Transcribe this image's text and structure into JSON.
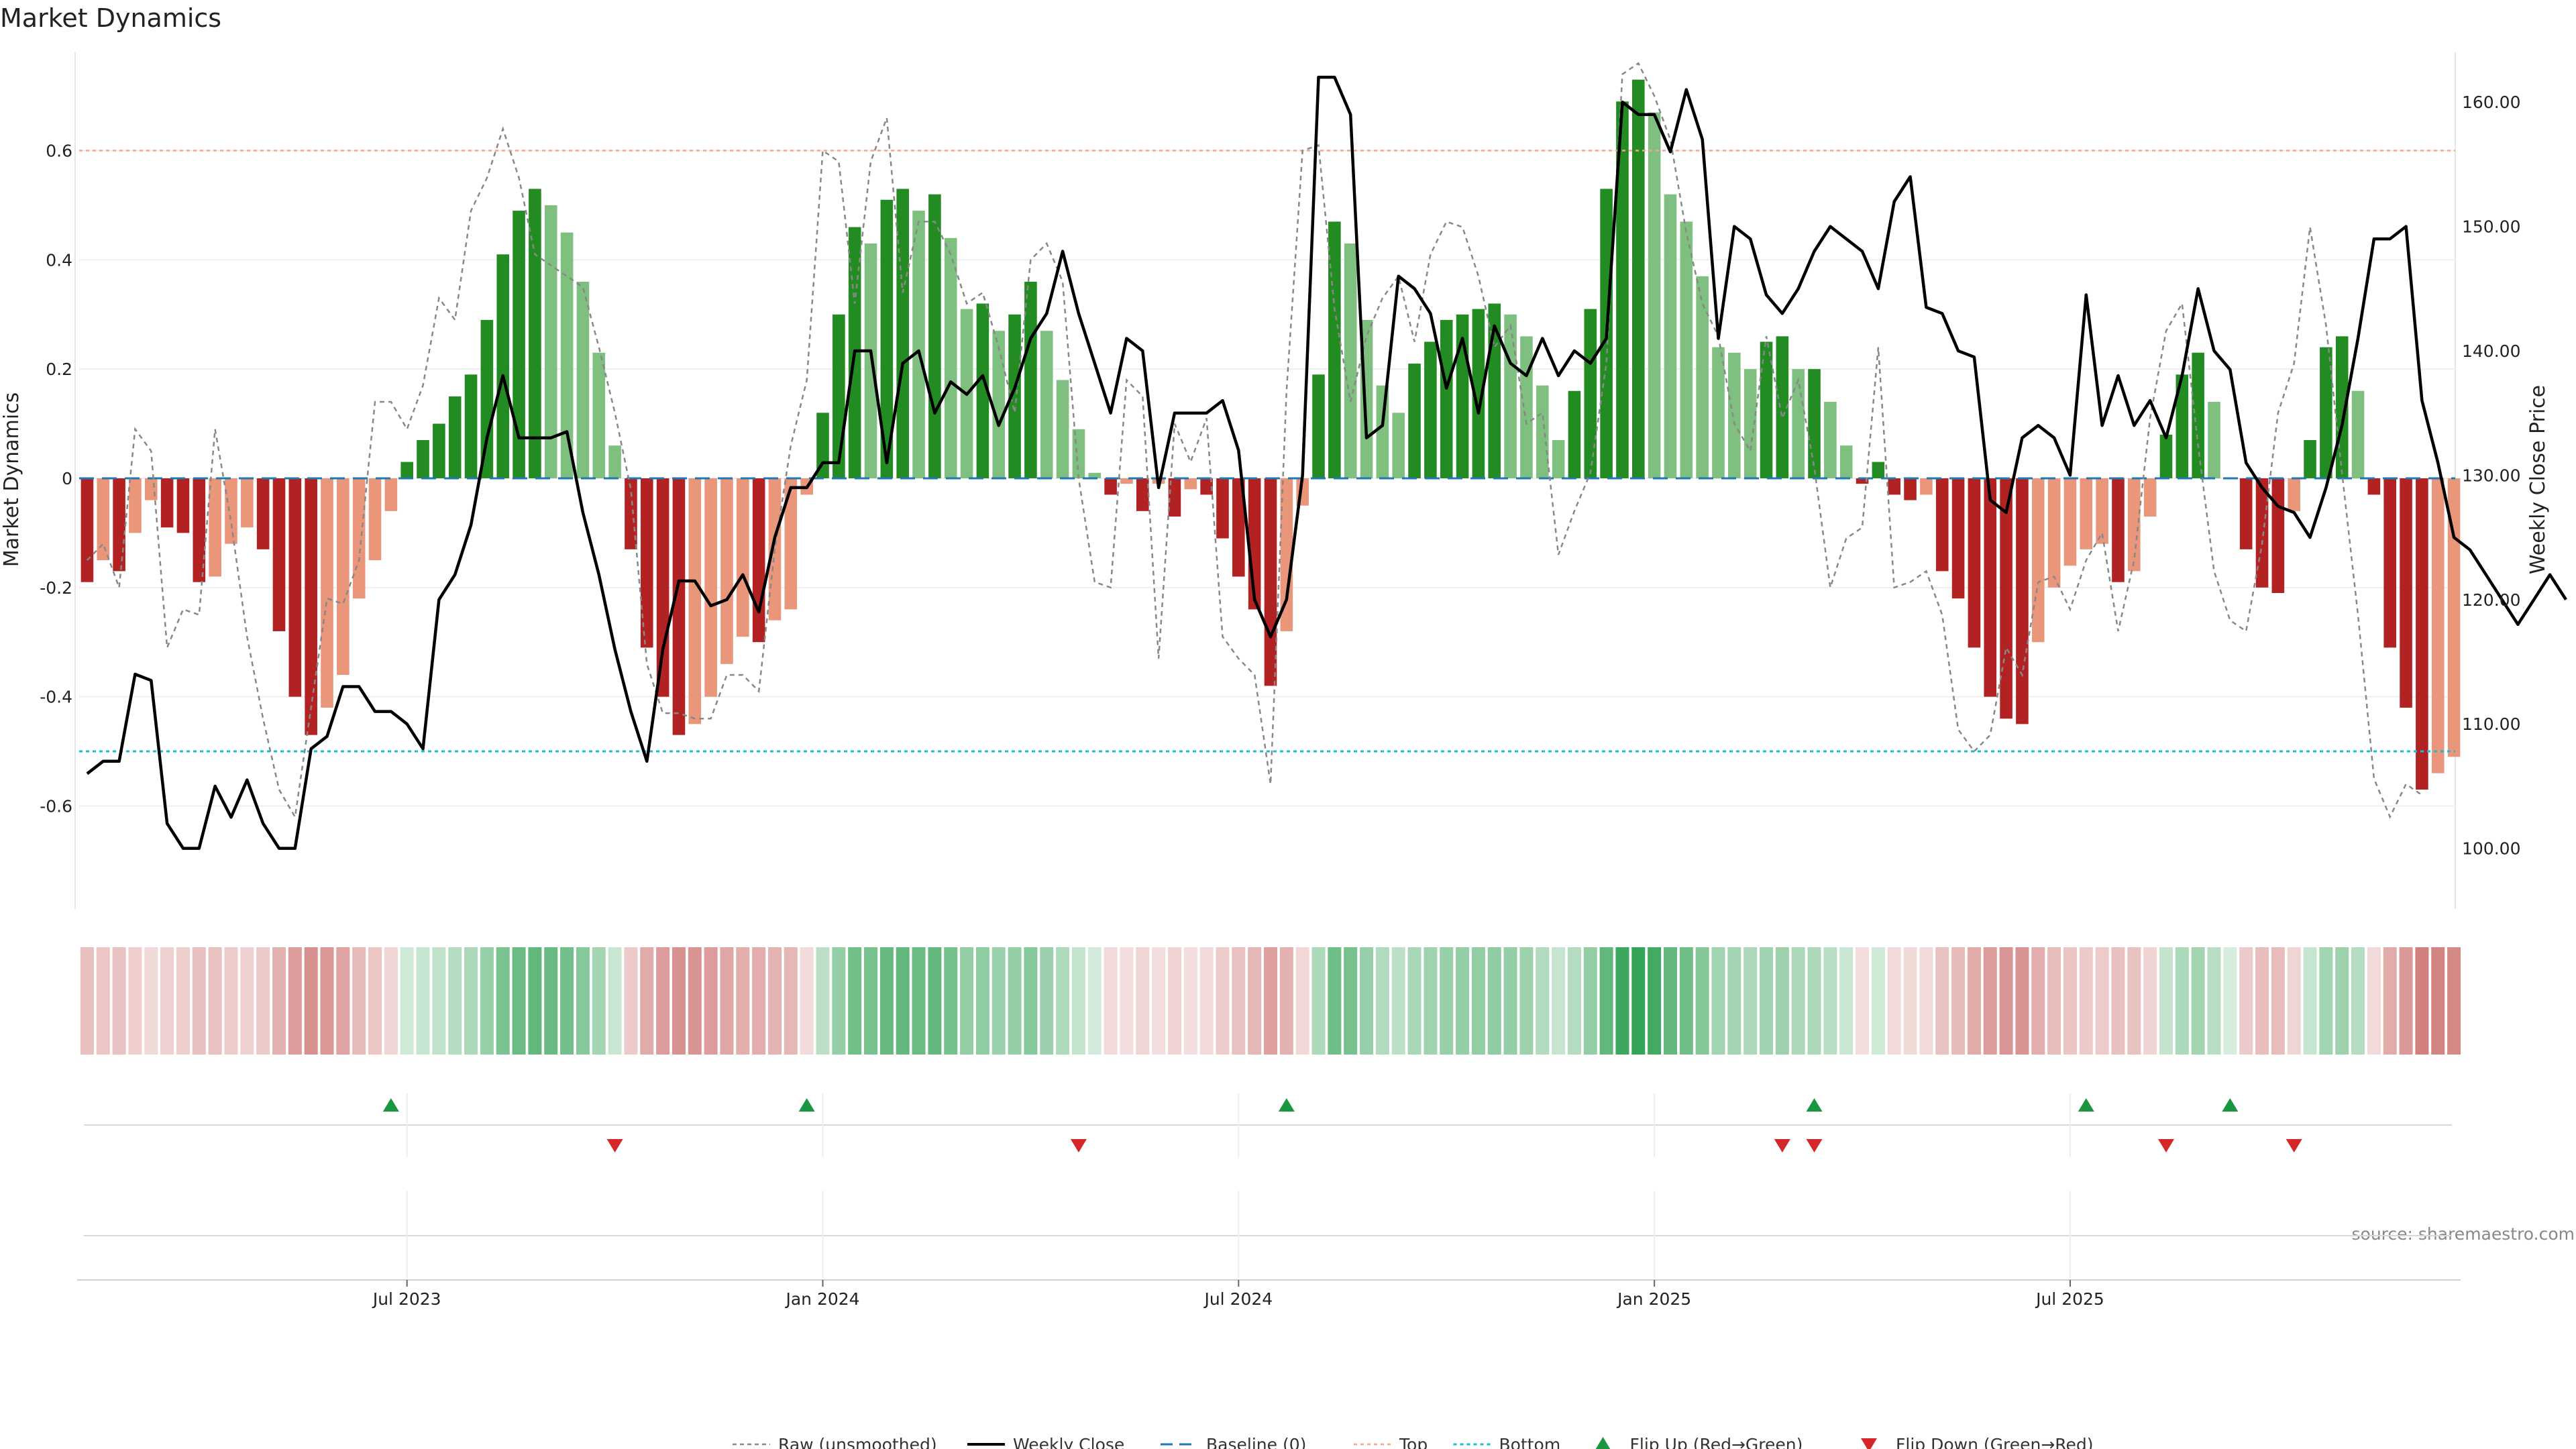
{
  "chart_data": {
    "type": "bar",
    "title": "Market Dynamics",
    "ylabel": "Market Dynamics",
    "y2label": "Weekly Close Price",
    "source": "source: sharemaestro.com",
    "ylim": [
      -0.78,
      0.78
    ],
    "y2lim": [
      95.5,
      164
    ],
    "yticks": [
      "-0.6",
      "-0.4",
      "-0.2",
      "0",
      "0.2",
      "0.4",
      "0.6"
    ],
    "y2ticks": [
      "100.00",
      "110.00",
      "120.00",
      "130.00",
      "140.00",
      "150.00",
      "160.00"
    ],
    "xticks": [
      "Jul 2023",
      "Jan 2024",
      "Jul 2024",
      "Jan 2025",
      "Jul 2025"
    ],
    "xtick_index": [
      20.5,
      46.5,
      72.5,
      98.5,
      124.5
    ],
    "x_start": "2023-03",
    "x_end": "2025-10",
    "top_line": 0.6,
    "bottom_line": -0.5,
    "baseline": 0,
    "grid": true,
    "legend_position": "bottom-center",
    "colors": {
      "strong_green": "#228b22",
      "weak_green": "#7fbf7f",
      "strong_red": "#b22222",
      "weak_red": "#e9967a",
      "close_line": "#000000",
      "raw_line": "#888888",
      "baseline": "#1f77b4",
      "top": "#f4a582",
      "bottom": "#17becf",
      "flip_up": "#1a9641",
      "flip_down": "#d62728"
    },
    "series": [
      {
        "name": "Market Dynamics",
        "values": [
          -0.19,
          -0.15,
          -0.17,
          -0.1,
          -0.04,
          -0.09,
          -0.1,
          -0.19,
          -0.18,
          -0.12,
          -0.09,
          -0.13,
          -0.28,
          -0.4,
          -0.47,
          -0.42,
          -0.36,
          -0.22,
          -0.15,
          -0.06,
          0.03,
          0.07,
          0.1,
          0.15,
          0.19,
          0.29,
          0.41,
          0.49,
          0.53,
          0.5,
          0.45,
          0.36,
          0.23,
          0.06,
          -0.13,
          -0.31,
          -0.4,
          -0.47,
          -0.45,
          -0.4,
          -0.34,
          -0.29,
          -0.3,
          -0.26,
          -0.24,
          -0.03,
          0.12,
          0.3,
          0.46,
          0.43,
          0.51,
          0.53,
          0.49,
          0.52,
          0.44,
          0.31,
          0.32,
          0.27,
          0.3,
          0.36,
          0.27,
          0.18,
          0.09,
          0.01,
          -0.03,
          -0.01,
          -0.06,
          -0.01,
          -0.07,
          -0.02,
          -0.03,
          -0.11,
          -0.18,
          -0.24,
          -0.38,
          -0.28,
          -0.05,
          0.19,
          0.47,
          0.43,
          0.29,
          0.17,
          0.12,
          0.21,
          0.25,
          0.29,
          0.3,
          0.31,
          0.32,
          0.3,
          0.26,
          0.17,
          0.07,
          0.16,
          0.31,
          0.53,
          0.69,
          0.73,
          0.67,
          0.52,
          0.47,
          0.37,
          0.24,
          0.23,
          0.2,
          0.25,
          0.26,
          0.2,
          0.2,
          0.14,
          0.06,
          -0.01,
          0.03,
          -0.03,
          -0.04,
          -0.03,
          -0.17,
          -0.22,
          -0.31,
          -0.4,
          -0.44,
          -0.45,
          -0.3,
          -0.2,
          -0.16,
          -0.13,
          -0.12,
          -0.19,
          -0.17,
          -0.07,
          0.08,
          0.19,
          0.23,
          0.14,
          0.0,
          -0.13,
          -0.2,
          -0.21,
          -0.06,
          0.07,
          0.24,
          0.26,
          0.16,
          -0.03,
          -0.31,
          -0.42,
          -0.57,
          -0.54,
          -0.51
        ]
      },
      {
        "name": "Weekly Close",
        "values": [
          106,
          107,
          107,
          114,
          113.5,
          102,
          100,
          100,
          105,
          102.5,
          105.5,
          102,
          100,
          100,
          108,
          109,
          113,
          113,
          111,
          111,
          110,
          108,
          120,
          122,
          126,
          133,
          138,
          133,
          133,
          133,
          133.5,
          127,
          122,
          116,
          111,
          107,
          116,
          121.5,
          121.5,
          119.5,
          120,
          122,
          119,
          125,
          129,
          129,
          131,
          131,
          140,
          140,
          131,
          139,
          140,
          135,
          137.5,
          136.5,
          138,
          134,
          137,
          141,
          143,
          148,
          143,
          139,
          135,
          141,
          140,
          129,
          135,
          135,
          135,
          136,
          132,
          120,
          117,
          120,
          130,
          162,
          162,
          159,
          133,
          134,
          146,
          145,
          143,
          137,
          141,
          135,
          142,
          139,
          138,
          141,
          138,
          140,
          139,
          141,
          160,
          159,
          159,
          156,
          161,
          157,
          141,
          150,
          149,
          144.5,
          143,
          145,
          148,
          150,
          149,
          148,
          145,
          152,
          154,
          143.5,
          143,
          140,
          139.5,
          128,
          127,
          133,
          134,
          133,
          130,
          144.5,
          134,
          138,
          134,
          136,
          133,
          138,
          145,
          140,
          138.5,
          131,
          129,
          127.5,
          127,
          125,
          129,
          134,
          141,
          149,
          149,
          150,
          136,
          131,
          125,
          124,
          122,
          120,
          118,
          120,
          122,
          120
        ]
      },
      {
        "name": "Raw (unsmoothed)",
        "values": [
          -0.15,
          -0.12,
          -0.2,
          0.09,
          0.05,
          -0.31,
          -0.24,
          -0.25,
          0.09,
          -0.08,
          -0.29,
          -0.44,
          -0.57,
          -0.62,
          -0.42,
          -0.22,
          -0.23,
          -0.15,
          0.14,
          0.14,
          0.09,
          0.17,
          0.33,
          0.29,
          0.49,
          0.55,
          0.64,
          0.55,
          0.41,
          0.39,
          0.37,
          0.35,
          0.24,
          0.12,
          -0.02,
          -0.34,
          -0.43,
          -0.43,
          -0.44,
          -0.44,
          -0.36,
          -0.36,
          -0.39,
          -0.13,
          0.06,
          0.18,
          0.6,
          0.58,
          0.32,
          0.58,
          0.66,
          0.34,
          0.47,
          0.47,
          0.41,
          0.32,
          0.34,
          0.24,
          0.12,
          0.4,
          0.43,
          0.36,
          0.0,
          -0.19,
          -0.2,
          0.18,
          0.15,
          -0.33,
          0.1,
          0.03,
          0.11,
          -0.29,
          -0.33,
          -0.36,
          -0.56,
          0.16,
          0.6,
          0.61,
          0.31,
          0.14,
          0.26,
          0.33,
          0.37,
          0.25,
          0.41,
          0.47,
          0.46,
          0.37,
          0.24,
          0.28,
          0.1,
          0.12,
          -0.14,
          -0.06,
          0.01,
          0.21,
          0.74,
          0.76,
          0.7,
          0.62,
          0.45,
          0.32,
          0.26,
          0.1,
          0.05,
          0.26,
          0.11,
          0.18,
          0.02,
          -0.2,
          -0.11,
          -0.09,
          0.24,
          -0.2,
          -0.19,
          -0.17,
          -0.25,
          -0.46,
          -0.5,
          -0.47,
          -0.31,
          -0.36,
          -0.19,
          -0.18,
          -0.24,
          -0.15,
          -0.1,
          -0.28,
          -0.15,
          0.11,
          0.27,
          0.32,
          0.06,
          -0.17,
          -0.26,
          -0.28,
          -0.12,
          0.12,
          0.21,
          0.46,
          0.28,
          0.01,
          -0.25,
          -0.55,
          -0.62,
          -0.56,
          -0.58
        ]
      }
    ],
    "flip_up_index": [
      19,
      45,
      75,
      108,
      125,
      134
    ],
    "flip_down_index": [
      33,
      62,
      106,
      108,
      130,
      138
    ]
  },
  "legend": [
    {
      "label": "Raw (unsmoothed)",
      "style": "raw"
    },
    {
      "label": "Weekly Close",
      "style": "close"
    },
    {
      "label": "Baseline (0)",
      "style": "baseline"
    },
    {
      "label": "Top",
      "style": "top"
    },
    {
      "label": "Bottom",
      "style": "bottom"
    },
    {
      "label": "Flip Up (Red→Green)",
      "style": "flipup"
    },
    {
      "label": "Flip Down (Green→Red)",
      "style": "flipdown"
    }
  ]
}
